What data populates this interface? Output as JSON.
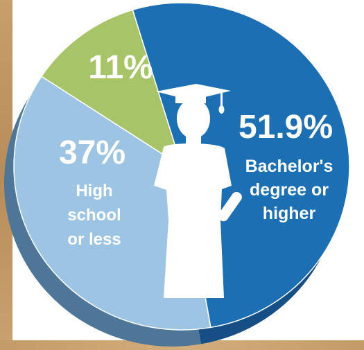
{
  "chart_data": {
    "type": "pie",
    "title": "",
    "slices": [
      {
        "label": "Bachelor's degree or higher",
        "percent_label": "51.9%",
        "value": 51.9,
        "color": "#1d6fb3",
        "side_color": "#154f86",
        "label_lines": [
          "Bachelor's",
          "degree or",
          "higher"
        ]
      },
      {
        "label": "High school or less",
        "percent_label": "37%",
        "value": 37,
        "color": "#9ec4e4",
        "side_color": "#4e7699",
        "label_lines": [
          "High",
          "school",
          "or less"
        ]
      },
      {
        "label": "",
        "percent_label": "11%",
        "value": 11,
        "color": "#a7c468",
        "side_color": "#6e8a3e",
        "label_lines": []
      }
    ],
    "colors": {
      "background": "#ffffff",
      "frame_wood": "#c49b67",
      "figure": "#ffffff"
    }
  }
}
